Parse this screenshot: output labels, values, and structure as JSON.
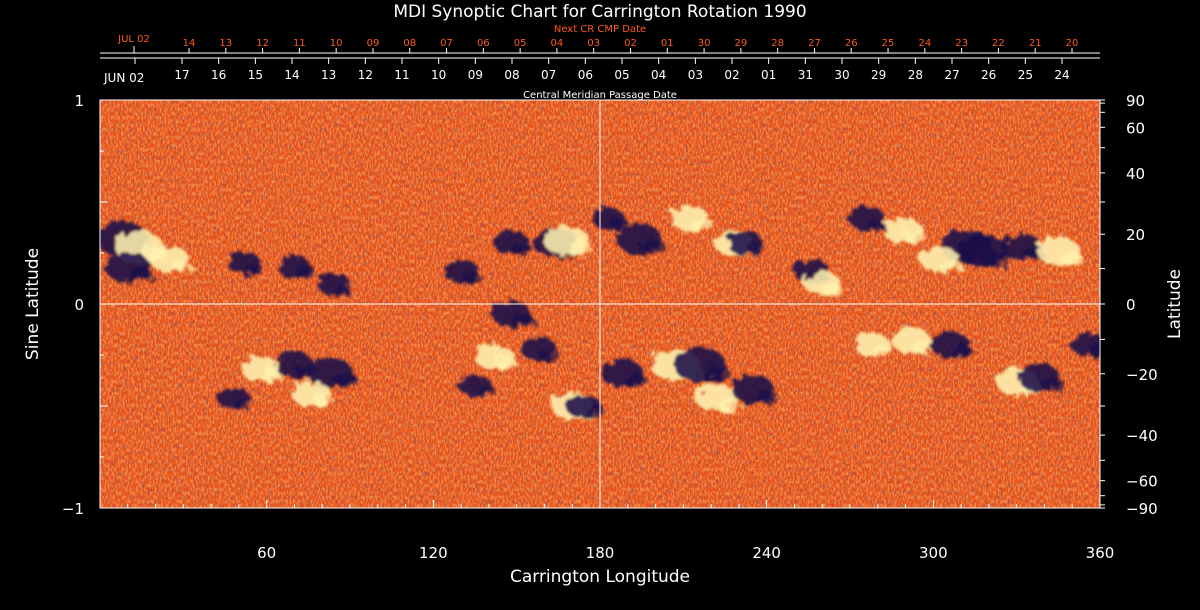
{
  "chart_data": {
    "type": "heatmap",
    "title": "MDI Synoptic Chart for Carrington Rotation 1990",
    "xlabel": "Carrington Longitude",
    "ylabel_left": "Sine Latitude",
    "ylabel_right": "Latitude",
    "xlim": [
      0,
      360
    ],
    "ylim": [
      -1,
      1
    ],
    "x_ticks": [
      60,
      120,
      180,
      240,
      300,
      360
    ],
    "x_tick_labels": [
      "60",
      "120",
      "180",
      "240",
      "300",
      "360"
    ],
    "y_left_ticks": [
      -1,
      0,
      1
    ],
    "y_left_tick_labels": [
      "−1",
      "0",
      "1"
    ],
    "y_right_ticks_deg": [
      90,
      60,
      40,
      20,
      0,
      -20,
      -40,
      -60,
      -90
    ],
    "y_right_tick_labels": [
      "90",
      "60",
      "40",
      "20",
      "0",
      "−20",
      "−40",
      "−60",
      "−90"
    ],
    "top_axis_caption": "Central Meridian Passage Date",
    "top_axis_start_label": "JUN 02",
    "top_axis_dates": [
      "17",
      "16",
      "15",
      "14",
      "13",
      "12",
      "11",
      "10",
      "09",
      "08",
      "07",
      "06",
      "05",
      "04",
      "03",
      "02",
      "01",
      "31",
      "30",
      "29",
      "28",
      "27",
      "26",
      "25",
      "24"
    ],
    "next_cr_caption": "Next CR CMP Date",
    "next_cr_start_label": "JUL 02",
    "next_cr_dates": [
      "14",
      "13",
      "12",
      "11",
      "10",
      "09",
      "08",
      "07",
      "06",
      "05",
      "04",
      "03",
      "02",
      "01",
      "30",
      "29",
      "28",
      "27",
      "26",
      "25",
      "24",
      "23",
      "22",
      "21",
      "20"
    ],
    "colors": {
      "background": "#000000",
      "field_base": "#e8531c",
      "positive": "#fff3b0",
      "negative": "#1a0f4a",
      "axis": "#ffffff",
      "next_cr": "#ff5a1e"
    },
    "active_regions": [
      {
        "lon": 8,
        "sinlat": 0.32,
        "polarity": "negative",
        "strength": 1.0
      },
      {
        "lon": 14,
        "sinlat": 0.28,
        "polarity": "positive",
        "strength": 0.9
      },
      {
        "lon": 10,
        "sinlat": 0.18,
        "polarity": "negative",
        "strength": 0.8
      },
      {
        "lon": 25,
        "sinlat": 0.22,
        "polarity": "positive",
        "strength": 0.6
      },
      {
        "lon": 52,
        "sinlat": 0.2,
        "polarity": "negative",
        "strength": 0.4
      },
      {
        "lon": 70,
        "sinlat": 0.18,
        "polarity": "negative",
        "strength": 0.4
      },
      {
        "lon": 84,
        "sinlat": 0.1,
        "polarity": "negative",
        "strength": 0.4
      },
      {
        "lon": 130,
        "sinlat": 0.16,
        "polarity": "negative",
        "strength": 0.5
      },
      {
        "lon": 148,
        "sinlat": 0.3,
        "polarity": "negative",
        "strength": 0.5
      },
      {
        "lon": 164,
        "sinlat": 0.3,
        "polarity": "negative",
        "strength": 0.8
      },
      {
        "lon": 168,
        "sinlat": 0.31,
        "polarity": "positive",
        "strength": 0.8
      },
      {
        "lon": 183,
        "sinlat": 0.42,
        "polarity": "negative",
        "strength": 0.4
      },
      {
        "lon": 194,
        "sinlat": 0.32,
        "polarity": "negative",
        "strength": 0.8
      },
      {
        "lon": 212,
        "sinlat": 0.42,
        "polarity": "positive",
        "strength": 0.6
      },
      {
        "lon": 228,
        "sinlat": 0.3,
        "polarity": "positive",
        "strength": 0.6
      },
      {
        "lon": 232,
        "sinlat": 0.3,
        "polarity": "negative",
        "strength": 0.5
      },
      {
        "lon": 256,
        "sinlat": 0.16,
        "polarity": "negative",
        "strength": 0.5
      },
      {
        "lon": 260,
        "sinlat": 0.1,
        "polarity": "positive",
        "strength": 0.5
      },
      {
        "lon": 276,
        "sinlat": 0.42,
        "polarity": "negative",
        "strength": 0.5
      },
      {
        "lon": 289,
        "sinlat": 0.36,
        "polarity": "positive",
        "strength": 0.6
      },
      {
        "lon": 312,
        "sinlat": 0.28,
        "polarity": "negative",
        "strength": 1.0
      },
      {
        "lon": 318,
        "sinlat": 0.26,
        "polarity": "negative",
        "strength": 0.9
      },
      {
        "lon": 302,
        "sinlat": 0.22,
        "polarity": "positive",
        "strength": 0.6
      },
      {
        "lon": 332,
        "sinlat": 0.28,
        "polarity": "negative",
        "strength": 0.6
      },
      {
        "lon": 345,
        "sinlat": 0.26,
        "polarity": "positive",
        "strength": 0.7
      },
      {
        "lon": 48,
        "sinlat": -0.46,
        "polarity": "negative",
        "strength": 0.4
      },
      {
        "lon": 58,
        "sinlat": -0.32,
        "polarity": "positive",
        "strength": 0.6
      },
      {
        "lon": 70,
        "sinlat": -0.3,
        "polarity": "negative",
        "strength": 0.6
      },
      {
        "lon": 83,
        "sinlat": -0.34,
        "polarity": "negative",
        "strength": 0.8
      },
      {
        "lon": 76,
        "sinlat": -0.44,
        "polarity": "positive",
        "strength": 0.6
      },
      {
        "lon": 135,
        "sinlat": -0.4,
        "polarity": "negative",
        "strength": 0.4
      },
      {
        "lon": 142,
        "sinlat": -0.26,
        "polarity": "positive",
        "strength": 0.6
      },
      {
        "lon": 148,
        "sinlat": -0.05,
        "polarity": "negative",
        "strength": 0.6
      },
      {
        "lon": 158,
        "sinlat": -0.22,
        "polarity": "negative",
        "strength": 0.5
      },
      {
        "lon": 170,
        "sinlat": -0.5,
        "polarity": "positive",
        "strength": 0.7
      },
      {
        "lon": 174,
        "sinlat": -0.5,
        "polarity": "negative",
        "strength": 0.5
      },
      {
        "lon": 188,
        "sinlat": -0.34,
        "polarity": "negative",
        "strength": 0.7
      },
      {
        "lon": 207,
        "sinlat": -0.3,
        "polarity": "positive",
        "strength": 0.9
      },
      {
        "lon": 216,
        "sinlat": -0.3,
        "polarity": "negative",
        "strength": 1.0
      },
      {
        "lon": 222,
        "sinlat": -0.46,
        "polarity": "positive",
        "strength": 0.7
      },
      {
        "lon": 235,
        "sinlat": -0.42,
        "polarity": "negative",
        "strength": 0.7
      },
      {
        "lon": 278,
        "sinlat": -0.2,
        "polarity": "positive",
        "strength": 0.5
      },
      {
        "lon": 292,
        "sinlat": -0.18,
        "polarity": "positive",
        "strength": 0.6
      },
      {
        "lon": 306,
        "sinlat": -0.2,
        "polarity": "negative",
        "strength": 0.6
      },
      {
        "lon": 330,
        "sinlat": -0.38,
        "polarity": "positive",
        "strength": 0.7
      },
      {
        "lon": 338,
        "sinlat": -0.36,
        "polarity": "negative",
        "strength": 0.7
      },
      {
        "lon": 356,
        "sinlat": -0.2,
        "polarity": "negative",
        "strength": 0.5
      }
    ]
  }
}
